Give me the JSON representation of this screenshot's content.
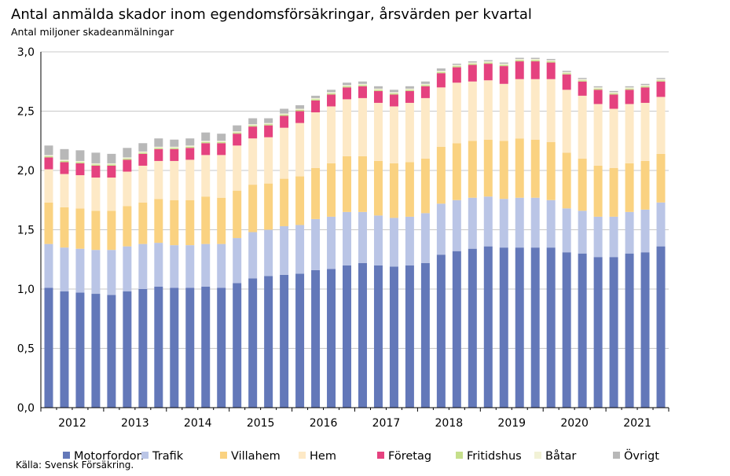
{
  "chart_data": {
    "type": "bar",
    "stacked": true,
    "title": "Antal anmälda skador inom egendomsförsäkringar, årsvärden per kvartal",
    "subtitle": "Antal miljoner skadeanmälningar",
    "source": "Källa: Svensk Försäkring.",
    "ylim": [
      0,
      3.0
    ],
    "yticks": [
      "0,0",
      "0,5",
      "1,0",
      "1,5",
      "2,0",
      "2,5",
      "3,0"
    ],
    "ytick_values": [
      0,
      0.5,
      1.0,
      1.5,
      2.0,
      2.5,
      3.0
    ],
    "year_labels": [
      "2012",
      "2013",
      "2014",
      "2015",
      "2016",
      "2017",
      "2018",
      "2019",
      "2020",
      "2021"
    ],
    "grid": true,
    "legend_position": "bottom",
    "series": [
      {
        "name": "Motorfordon",
        "color": "#6378b9",
        "values": [
          1.01,
          0.98,
          0.97,
          0.96,
          0.95,
          0.98,
          1.0,
          1.02,
          1.01,
          1.01,
          1.02,
          1.01,
          1.05,
          1.09,
          1.11,
          1.12,
          1.13,
          1.16,
          1.17,
          1.2,
          1.22,
          1.2,
          1.19,
          1.2,
          1.22,
          1.29,
          1.32,
          1.34,
          1.36,
          1.35,
          1.35,
          1.35,
          1.35,
          1.31,
          1.3,
          1.27,
          1.27,
          1.3,
          1.31,
          1.36
        ]
      },
      {
        "name": "Trafik",
        "color": "#bac5e6",
        "values": [
          0.37,
          0.37,
          0.37,
          0.37,
          0.38,
          0.38,
          0.38,
          0.37,
          0.36,
          0.36,
          0.36,
          0.37,
          0.38,
          0.39,
          0.39,
          0.41,
          0.41,
          0.43,
          0.44,
          0.45,
          0.43,
          0.42,
          0.41,
          0.41,
          0.42,
          0.43,
          0.43,
          0.43,
          0.42,
          0.41,
          0.42,
          0.42,
          0.4,
          0.37,
          0.36,
          0.34,
          0.34,
          0.35,
          0.36,
          0.37
        ]
      },
      {
        "name": "Villahem",
        "color": "#fad281",
        "values": [
          0.35,
          0.34,
          0.34,
          0.33,
          0.33,
          0.34,
          0.35,
          0.37,
          0.38,
          0.38,
          0.4,
          0.39,
          0.4,
          0.4,
          0.39,
          0.4,
          0.41,
          0.43,
          0.45,
          0.47,
          0.47,
          0.46,
          0.46,
          0.46,
          0.46,
          0.48,
          0.48,
          0.48,
          0.48,
          0.49,
          0.5,
          0.49,
          0.49,
          0.47,
          0.44,
          0.43,
          0.41,
          0.41,
          0.41,
          0.41
        ]
      },
      {
        "name": "Hem",
        "color": "#fde9c6",
        "values": [
          0.28,
          0.28,
          0.28,
          0.28,
          0.28,
          0.29,
          0.31,
          0.32,
          0.33,
          0.34,
          0.35,
          0.36,
          0.38,
          0.39,
          0.39,
          0.43,
          0.45,
          0.47,
          0.48,
          0.48,
          0.49,
          0.49,
          0.48,
          0.5,
          0.51,
          0.5,
          0.51,
          0.5,
          0.5,
          0.48,
          0.5,
          0.51,
          0.53,
          0.53,
          0.53,
          0.52,
          0.5,
          0.5,
          0.49,
          0.48
        ]
      },
      {
        "name": "Företag",
        "color": "#e5427f",
        "values": [
          0.1,
          0.1,
          0.1,
          0.1,
          0.1,
          0.1,
          0.1,
          0.1,
          0.1,
          0.1,
          0.1,
          0.1,
          0.1,
          0.1,
          0.1,
          0.1,
          0.1,
          0.1,
          0.1,
          0.1,
          0.1,
          0.1,
          0.1,
          0.1,
          0.1,
          0.12,
          0.13,
          0.14,
          0.14,
          0.15,
          0.15,
          0.15,
          0.14,
          0.13,
          0.12,
          0.12,
          0.12,
          0.12,
          0.13,
          0.13
        ]
      },
      {
        "name": "Fritidshus",
        "color": "#c5df8b",
        "values": [
          0.01,
          0.01,
          0.01,
          0.01,
          0.01,
          0.01,
          0.01,
          0.01,
          0.01,
          0.01,
          0.01,
          0.01,
          0.01,
          0.01,
          0.01,
          0.01,
          0.01,
          0.01,
          0.01,
          0.01,
          0.01,
          0.01,
          0.01,
          0.01,
          0.01,
          0.01,
          0.01,
          0.01,
          0.01,
          0.01,
          0.01,
          0.01,
          0.01,
          0.01,
          0.01,
          0.01,
          0.01,
          0.01,
          0.01,
          0.01
        ]
      },
      {
        "name": "Båtar",
        "color": "#f2f2d6",
        "values": [
          0.01,
          0.01,
          0.01,
          0.01,
          0.01,
          0.01,
          0.01,
          0.01,
          0.01,
          0.01,
          0.01,
          0.01,
          0.01,
          0.01,
          0.01,
          0.01,
          0.01,
          0.01,
          0.01,
          0.01,
          0.01,
          0.01,
          0.01,
          0.01,
          0.01,
          0.01,
          0.01,
          0.01,
          0.01,
          0.01,
          0.01,
          0.01,
          0.01,
          0.01,
          0.01,
          0.01,
          0.01,
          0.01,
          0.01,
          0.01
        ]
      },
      {
        "name": "Övrigt",
        "color": "#b8b8b8",
        "values": [
          0.08,
          0.09,
          0.09,
          0.09,
          0.08,
          0.08,
          0.07,
          0.07,
          0.06,
          0.06,
          0.07,
          0.06,
          0.05,
          0.05,
          0.04,
          0.04,
          0.03,
          0.02,
          0.02,
          0.02,
          0.02,
          0.02,
          0.02,
          0.02,
          0.02,
          0.02,
          0.01,
          0.01,
          0.01,
          0.01,
          0.01,
          0.01,
          0.01,
          0.01,
          0.01,
          0.01,
          0.01,
          0.01,
          0.01,
          0.01
        ]
      }
    ]
  }
}
